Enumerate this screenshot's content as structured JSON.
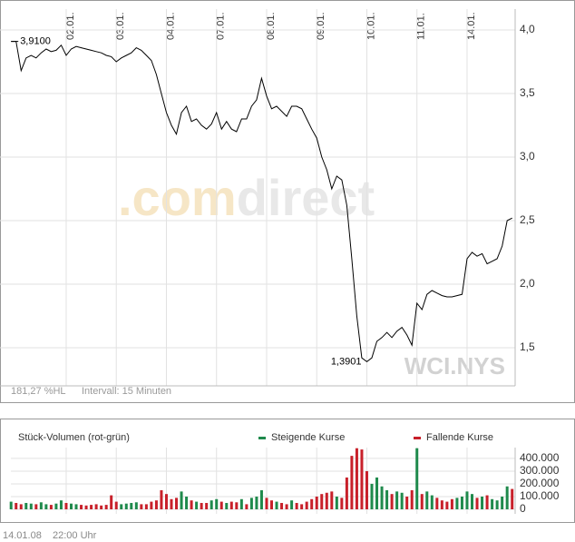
{
  "chart_data": [
    {
      "type": "line",
      "symbol": "WCI.NYS",
      "info": "181,27 %HL",
      "interval": "Intervall: 15 Minuten",
      "watermark": [
        ".com",
        "direct"
      ],
      "annotations": [
        "3,9100",
        "1,3901"
      ],
      "categories": [
        null,
        null,
        null,
        null,
        null,
        null,
        null,
        null,
        null,
        null,
        null,
        "02.01.",
        null,
        null,
        null,
        null,
        null,
        null,
        null,
        null,
        null,
        "03.01.",
        null,
        null,
        null,
        null,
        null,
        null,
        null,
        null,
        null,
        "04.01.",
        null,
        null,
        null,
        null,
        null,
        null,
        null,
        null,
        null,
        "07.01.",
        null,
        null,
        null,
        null,
        null,
        null,
        null,
        null,
        null,
        "08.01.",
        null,
        null,
        null,
        null,
        null,
        null,
        null,
        null,
        null,
        "09.01.",
        null,
        null,
        null,
        null,
        null,
        null,
        null,
        null,
        null,
        "10.01.",
        null,
        null,
        null,
        null,
        null,
        null,
        null,
        null,
        null,
        "11.01.",
        null,
        null,
        null,
        null,
        null,
        null,
        null,
        null,
        null,
        "14.01.",
        null,
        null,
        null,
        null,
        null,
        null,
        null,
        null,
        null
      ],
      "series": [
        {
          "color": "#000000",
          "values": [
            3.91,
            3.91,
            3.68,
            3.78,
            3.8,
            3.78,
            3.82,
            3.85,
            3.83,
            3.84,
            3.88,
            3.8,
            3.85,
            3.87,
            3.86,
            3.85,
            3.84,
            3.83,
            3.82,
            3.8,
            3.79,
            3.75,
            3.78,
            3.8,
            3.82,
            3.86,
            3.84,
            3.8,
            3.76,
            3.65,
            3.5,
            3.35,
            3.25,
            3.18,
            3.35,
            3.4,
            3.28,
            3.3,
            3.25,
            3.22,
            3.26,
            3.35,
            3.22,
            3.28,
            3.22,
            3.2,
            3.3,
            3.3,
            3.4,
            3.45,
            3.62,
            3.48,
            3.38,
            3.4,
            3.36,
            3.32,
            3.4,
            3.4,
            3.38,
            3.3,
            3.22,
            3.15,
            3.0,
            2.9,
            2.75,
            2.85,
            2.82,
            2.62,
            2.2,
            1.75,
            1.42,
            1.3901,
            1.42,
            1.55,
            1.58,
            1.62,
            1.58,
            1.63,
            1.66,
            1.6,
            1.52,
            1.85,
            1.8,
            1.92,
            1.95,
            1.93,
            1.91,
            1.9,
            1.9,
            1.91,
            1.92,
            2.2,
            2.25,
            2.22,
            2.24,
            2.16,
            2.18,
            2.2,
            2.3,
            2.5,
            2.52
          ]
        }
      ],
      "ylim": [
        1.2,
        4.15
      ],
      "yticks": [
        {
          "value": 1.5,
          "label": "1,5"
        },
        {
          "value": 2,
          "label": "2,0"
        },
        {
          "value": 2.5,
          "label": "2,5"
        },
        {
          "value": 3,
          "label": "3,0"
        },
        {
          "value": 3.5,
          "label": "3,5"
        },
        {
          "value": 4,
          "label": "4,0"
        }
      ],
      "grid": true
    },
    {
      "type": "bar",
      "title": "Stück-Volumen (rot-grün)",
      "series": [
        {
          "name": "Steigende Kurse",
          "color": "#1f8a4c",
          "values": [
            60000,
            null,
            null,
            50000,
            45000,
            null,
            55000,
            40000,
            null,
            45000,
            70000,
            null,
            45000,
            40000,
            null,
            null,
            null,
            null,
            null,
            null,
            null,
            null,
            40000,
            45000,
            50000,
            55000,
            null,
            null,
            null,
            null,
            null,
            null,
            null,
            null,
            140000,
            100000,
            null,
            60000,
            null,
            null,
            70000,
            80000,
            null,
            50000,
            null,
            null,
            80000,
            null,
            90000,
            100000,
            150000,
            null,
            null,
            60000,
            null,
            null,
            70000,
            null,
            null,
            null,
            null,
            null,
            null,
            null,
            null,
            100000,
            null,
            null,
            null,
            null,
            null,
            null,
            200000,
            250000,
            180000,
            150000,
            null,
            140000,
            130000,
            null,
            null,
            480000,
            null,
            140000,
            110000,
            null,
            null,
            null,
            null,
            90000,
            100000,
            140000,
            120000,
            null,
            100000,
            null,
            80000,
            70000,
            100000,
            180000,
            null
          ]
        },
        {
          "name": "Fallende Kurse",
          "color": "#c8202a",
          "values": [
            null,
            50000,
            40000,
            null,
            null,
            40000,
            null,
            null,
            35000,
            null,
            null,
            50000,
            null,
            null,
            35000,
            30000,
            35000,
            40000,
            30000,
            35000,
            110000,
            60000,
            null,
            null,
            null,
            null,
            40000,
            40000,
            60000,
            70000,
            150000,
            120000,
            80000,
            90000,
            null,
            null,
            70000,
            null,
            50000,
            50000,
            null,
            null,
            60000,
            null,
            60000,
            55000,
            null,
            40000,
            null,
            null,
            null,
            90000,
            70000,
            null,
            50000,
            40000,
            null,
            50000,
            40000,
            60000,
            80000,
            100000,
            120000,
            130000,
            140000,
            null,
            90000,
            250000,
            420000,
            480000,
            470000,
            300000,
            null,
            null,
            null,
            null,
            120000,
            null,
            null,
            100000,
            150000,
            null,
            120000,
            null,
            null,
            90000,
            70000,
            60000,
            80000,
            null,
            null,
            null,
            null,
            90000,
            null,
            110000,
            null,
            null,
            null,
            null,
            160000
          ]
        }
      ],
      "ylim": [
        0,
        485000
      ],
      "yticks": [
        0,
        {
          "value": 100000,
          "label": "100.000"
        },
        {
          "value": 200000,
          "label": "200.000"
        },
        {
          "value": 300000,
          "label": "300.000"
        },
        {
          "value": 400000,
          "label": "400.000"
        }
      ],
      "grid": true
    }
  ],
  "footer": {
    "date": "14.01.08",
    "time": "22:00 Uhr"
  }
}
